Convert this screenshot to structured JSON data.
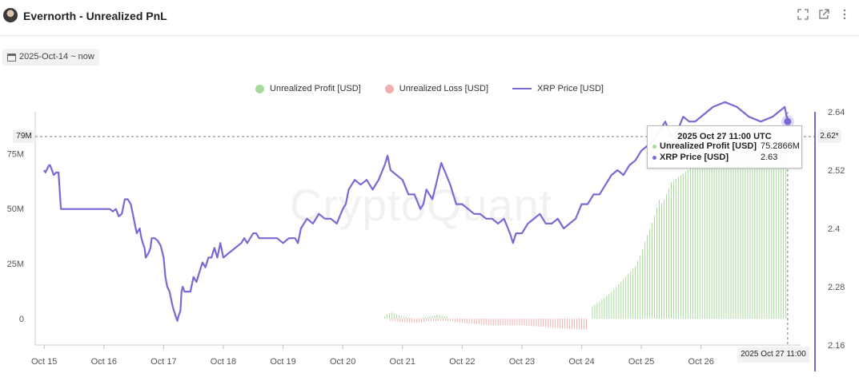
{
  "header": {
    "title": "Evernorth - Unrealized PnL",
    "icons": [
      "fullscreen-icon",
      "open-external-icon",
      "more-vertical-icon"
    ]
  },
  "date_range": {
    "label": "2025-Oct-14 ~ now"
  },
  "watermark": "CryptoQuant",
  "legend": [
    {
      "label": "Unrealized Profit [USD]",
      "color": "#a6d99a"
    },
    {
      "label": "Unrealized Loss [USD]",
      "color": "#f0b0ad"
    },
    {
      "label": "XRP Price [USD]",
      "color": "#7b68d4"
    }
  ],
  "tooltip": {
    "title": "2025 Oct 27 11:00 UTC",
    "rows": [
      {
        "name": "Unrealized Profit [USD]",
        "value": "75.2866M",
        "color": "#a6d99a"
      },
      {
        "name": "XRP Price [USD]",
        "value": "2.63",
        "color": "#7b68d4"
      }
    ]
  },
  "crosshair": {
    "x_label": "2025 Oct 27 11:00",
    "y_label": "79M",
    "y2_label": "2.62*"
  },
  "chart_data": {
    "type": "line",
    "x_ticks": [
      "Oct 15",
      "Oct 16",
      "Oct 17",
      "Oct 18",
      "Oct 19",
      "Oct 20",
      "Oct 21",
      "Oct 22",
      "Oct 23",
      "Oct 24",
      "Oct 25",
      "Oct 26"
    ],
    "y_left": {
      "ticks": [
        "0",
        "25M",
        "50M",
        "75M"
      ],
      "values": [
        0,
        25,
        50,
        75
      ],
      "range": [
        -12,
        94
      ]
    },
    "y_right": {
      "ticks": [
        "2.16",
        "2.28",
        "2.4",
        "2.52",
        "2.64"
      ],
      "values": [
        2.16,
        2.28,
        2.4,
        2.52,
        2.64
      ],
      "range": [
        2.16,
        2.64
      ]
    },
    "x_range": [
      14.85,
      27.8
    ],
    "price": {
      "name": "XRP Price [USD]",
      "x": [
        15.0,
        15.02,
        15.04,
        15.06,
        15.08,
        15.1,
        15.13,
        15.16,
        15.2,
        15.24,
        15.28,
        15.5,
        15.8,
        16.1,
        16.15,
        16.2,
        16.25,
        16.3,
        16.35,
        16.4,
        16.45,
        16.5,
        16.55,
        16.6,
        16.62,
        16.65,
        16.68,
        16.7,
        16.75,
        16.78,
        16.8,
        16.85,
        16.9,
        16.95,
        17.0,
        17.03,
        17.06,
        17.1,
        17.15,
        17.2,
        17.23,
        17.25,
        17.28,
        17.3,
        17.32,
        17.35,
        17.4,
        17.45,
        17.5,
        17.55,
        17.6,
        17.65,
        17.7,
        17.75,
        17.8,
        17.85,
        17.9,
        17.95,
        18.0,
        18.1,
        18.2,
        18.3,
        18.35,
        18.4,
        18.5,
        18.55,
        18.6,
        18.7,
        18.8,
        18.9,
        19.0,
        19.1,
        19.2,
        19.25,
        19.3,
        19.4,
        19.5,
        19.6,
        19.7,
        19.8,
        19.9,
        20.0,
        20.05,
        20.1,
        20.2,
        20.3,
        20.4,
        20.5,
        20.6,
        20.7,
        20.75,
        20.8,
        20.9,
        21.0,
        21.1,
        21.2,
        21.3,
        21.35,
        21.4,
        21.5,
        21.6,
        21.65,
        21.7,
        21.8,
        21.9,
        22.0,
        22.1,
        22.2,
        22.3,
        22.4,
        22.5,
        22.6,
        22.7,
        22.8,
        22.85,
        22.9,
        23.0,
        23.1,
        23.2,
        23.3,
        23.4,
        23.5,
        23.6,
        23.7,
        23.8,
        23.9,
        24.0,
        24.1,
        24.2,
        24.3,
        24.4,
        24.5,
        24.6,
        24.7,
        24.8,
        24.9,
        25.0,
        25.1,
        25.2,
        25.3,
        25.4,
        25.5,
        25.6,
        25.7,
        25.8,
        25.9,
        26.0,
        26.2,
        26.4,
        26.6,
        26.8,
        27.0,
        27.2,
        27.4,
        27.45
      ],
      "y": [
        2.52,
        2.515,
        2.52,
        2.525,
        2.53,
        2.53,
        2.52,
        2.51,
        2.515,
        2.515,
        2.44,
        2.44,
        2.44,
        2.44,
        2.435,
        2.44,
        2.425,
        2.43,
        2.46,
        2.46,
        2.45,
        2.42,
        2.39,
        2.4,
        2.385,
        2.37,
        2.36,
        2.34,
        2.35,
        2.36,
        2.38,
        2.38,
        2.375,
        2.365,
        2.34,
        2.3,
        2.28,
        2.27,
        2.24,
        2.22,
        2.21,
        2.22,
        2.23,
        2.27,
        2.28,
        2.27,
        2.27,
        2.27,
        2.3,
        2.29,
        2.31,
        2.33,
        2.32,
        2.34,
        2.34,
        2.36,
        2.34,
        2.37,
        2.34,
        2.35,
        2.36,
        2.37,
        2.38,
        2.37,
        2.39,
        2.39,
        2.38,
        2.38,
        2.38,
        2.38,
        2.37,
        2.38,
        2.38,
        2.37,
        2.4,
        2.42,
        2.41,
        2.43,
        2.42,
        2.42,
        2.41,
        2.44,
        2.45,
        2.48,
        2.5,
        2.49,
        2.5,
        2.48,
        2.5,
        2.53,
        2.55,
        2.52,
        2.51,
        2.5,
        2.47,
        2.47,
        2.44,
        2.45,
        2.48,
        2.46,
        2.51,
        2.535,
        2.52,
        2.49,
        2.45,
        2.45,
        2.44,
        2.43,
        2.43,
        2.42,
        2.42,
        2.41,
        2.42,
        2.39,
        2.37,
        2.39,
        2.39,
        2.41,
        2.42,
        2.43,
        2.41,
        2.41,
        2.42,
        2.4,
        2.41,
        2.42,
        2.45,
        2.45,
        2.47,
        2.47,
        2.49,
        2.51,
        2.52,
        2.51,
        2.53,
        2.54,
        2.56,
        2.57,
        2.58,
        2.6,
        2.62,
        2.59,
        2.6,
        2.63,
        2.62,
        2.62,
        2.63,
        2.65,
        2.66,
        2.65,
        2.63,
        2.62,
        2.63,
        2.65,
        2.62
      ]
    },
    "profit": {
      "name": "Unrealized Profit [USD]",
      "x": [
        20.7,
        20.8,
        20.9,
        21.0,
        21.1,
        21.2,
        21.5,
        21.6,
        21.7,
        24.15,
        24.3,
        24.5,
        24.7,
        24.9,
        25.0,
        25.1,
        25.2,
        25.3,
        25.35,
        25.5,
        25.7,
        26.0,
        26.5,
        27.0,
        27.2,
        27.45
      ],
      "y": [
        1,
        3,
        2,
        1,
        0.5,
        0,
        1,
        2,
        1,
        5,
        8,
        12,
        18,
        24,
        30,
        38,
        45,
        54,
        52,
        62,
        66,
        72,
        75,
        76,
        75,
        75.3
      ]
    },
    "loss": {
      "name": "Unrealized Loss [USD]",
      "x": [
        20.8,
        21.2,
        21.5,
        21.8,
        22.0,
        22.5,
        23.0,
        23.5,
        24.0,
        24.1
      ],
      "y": [
        -1,
        -2,
        -1,
        -1,
        -2,
        -3,
        -3,
        -4,
        -5,
        -5
      ]
    },
    "crosshair_x": 27.45
  }
}
